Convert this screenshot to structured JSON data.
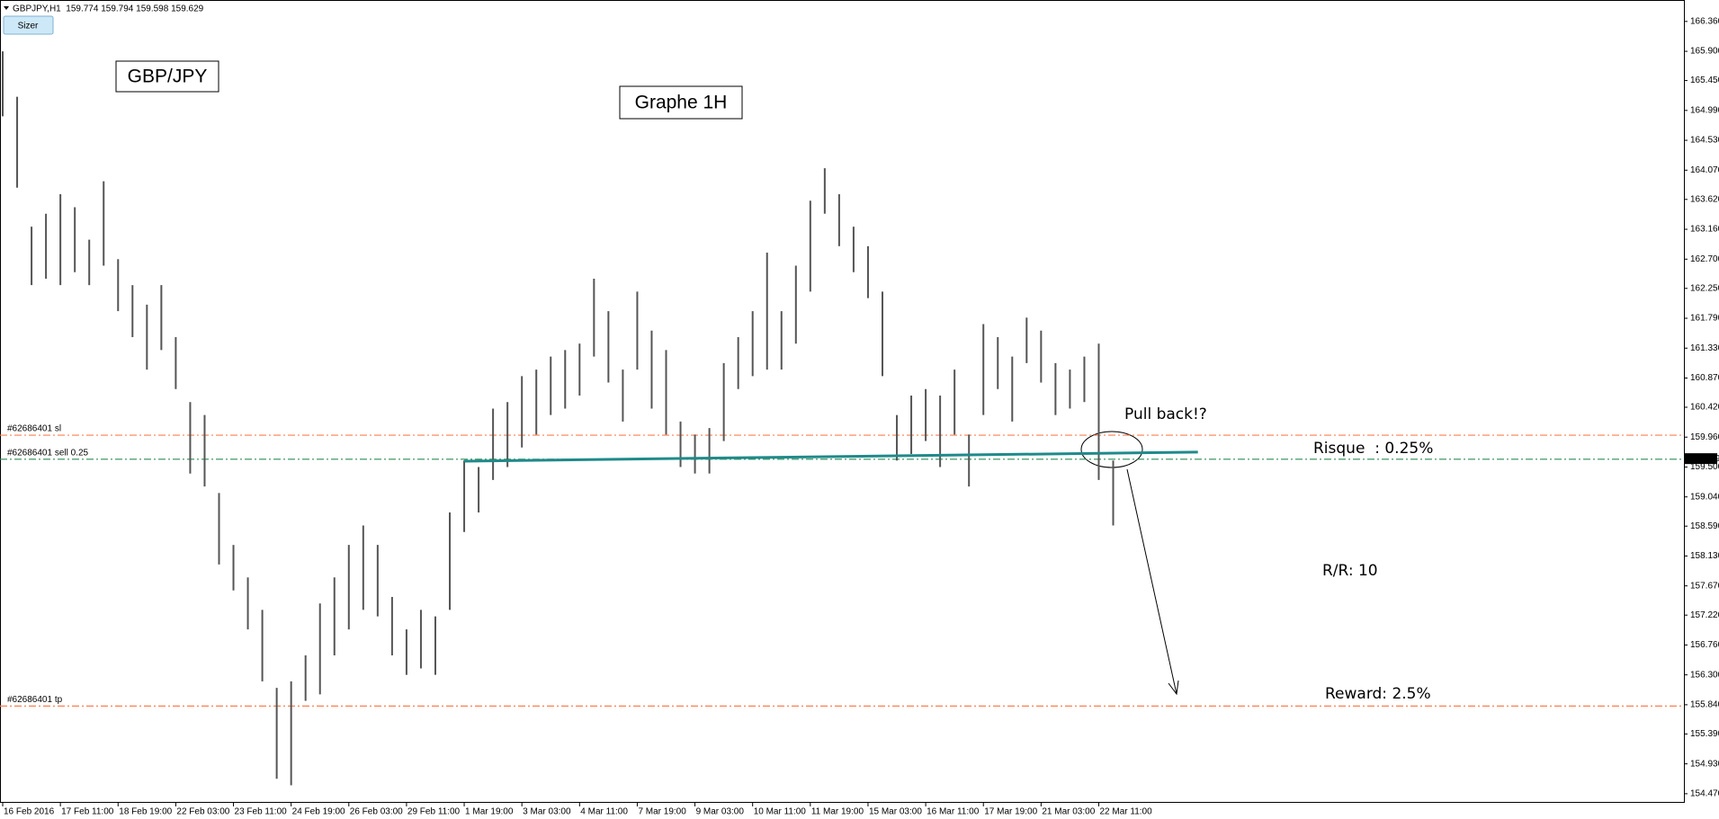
{
  "header": "GBPJPY,H1  159.774 159.794 159.598 159.629",
  "button": "Sizer",
  "chart_data": {
    "type": "ohlc",
    "x": [
      0,
      8,
      16,
      24,
      32,
      40,
      48,
      56,
      64,
      72,
      80,
      88,
      96,
      104,
      112,
      120,
      128,
      136,
      144,
      152,
      160,
      168,
      176,
      184,
      192,
      200,
      208,
      216,
      224,
      232,
      240,
      248,
      256,
      264,
      272,
      280,
      288,
      296,
      304,
      312,
      320,
      328,
      336,
      344,
      352,
      360,
      368,
      376,
      384,
      392,
      400,
      408,
      416,
      424,
      432,
      440,
      448,
      456,
      464,
      472,
      480,
      488,
      496,
      504,
      512,
      520,
      528,
      536,
      544,
      552,
      560,
      568,
      576,
      584,
      592,
      600,
      608,
      616
    ],
    "series": [
      {
        "color": "#555555",
        "high": [
          165.9,
          165.2,
          163.2,
          163.4,
          163.7,
          163.5,
          163.0,
          163.9,
          162.7,
          162.3,
          162.0,
          162.3,
          161.5,
          160.5,
          160.3,
          159.1,
          158.3,
          157.8,
          157.3,
          156.1,
          156.2,
          156.6,
          157.4,
          157.8,
          158.3,
          158.6,
          158.3,
          157.5,
          157.0,
          157.3,
          157.2,
          158.8,
          159.6,
          159.5,
          160.4,
          160.5,
          160.9,
          161.0,
          161.2,
          161.3,
          161.4,
          162.4,
          161.9,
          161.0,
          162.2,
          161.6,
          161.3,
          160.2,
          160.0,
          160.1,
          161.1,
          161.5,
          161.9,
          162.8,
          161.9,
          162.6,
          163.6,
          164.1,
          163.7,
          163.2,
          162.9,
          162.2,
          160.3,
          160.6,
          160.7,
          160.6,
          161.0,
          160.0,
          161.7,
          161.5,
          161.2,
          161.8,
          161.6,
          161.1,
          161.0,
          161.2,
          161.4,
          159.6
        ],
        "low": [
          164.9,
          163.8,
          162.3,
          162.4,
          162.3,
          162.5,
          162.3,
          162.6,
          161.9,
          161.5,
          161.0,
          161.3,
          160.7,
          159.4,
          159.2,
          158.0,
          157.6,
          157.0,
          156.2,
          154.7,
          154.6,
          155.9,
          156.0,
          156.6,
          157.0,
          157.3,
          157.2,
          156.6,
          156.3,
          156.4,
          156.3,
          157.3,
          158.5,
          158.8,
          159.3,
          159.5,
          159.8,
          160.0,
          160.3,
          160.4,
          160.6,
          161.2,
          160.8,
          160.2,
          161.0,
          160.4,
          160.0,
          159.5,
          159.4,
          159.4,
          159.9,
          160.7,
          160.9,
          161.0,
          161.0,
          161.4,
          162.2,
          163.4,
          162.9,
          162.5,
          162.1,
          160.9,
          159.6,
          159.7,
          159.9,
          159.5,
          160.0,
          159.2,
          160.3,
          160.7,
          160.2,
          161.1,
          160.8,
          160.3,
          160.4,
          160.5,
          159.3,
          158.6
        ]
      }
    ],
    "xlim": [
      -1.5,
      932.6
    ],
    "xticks": [
      {
        "value": 0,
        "label": "16 Feb 2016"
      },
      {
        "value": 32,
        "label": "17 Feb 11:00"
      },
      {
        "value": 64,
        "label": "18 Feb 19:00"
      },
      {
        "value": 96,
        "label": "22 Feb 03:00"
      },
      {
        "value": 128,
        "label": "23 Feb 11:00"
      },
      {
        "value": 160,
        "label": "24 Feb 19:00"
      },
      {
        "value": 192,
        "label": "26 Feb 03:00"
      },
      {
        "value": 224,
        "label": "29 Feb 11:00"
      },
      {
        "value": 256,
        "label": "1 Mar 19:00"
      },
      {
        "value": 288,
        "label": "3 Mar 03:00"
      },
      {
        "value": 320,
        "label": "4 Mar 11:00"
      },
      {
        "value": 352,
        "label": "7 Mar 19:00"
      },
      {
        "value": 384,
        "label": "9 Mar 03:00"
      },
      {
        "value": 416,
        "label": "10 Mar 11:00"
      },
      {
        "value": 448,
        "label": "11 Mar 19:00"
      },
      {
        "value": 480,
        "label": "15 Mar 03:00"
      },
      {
        "value": 512,
        "label": "16 Mar 11:00"
      },
      {
        "value": 544,
        "label": "17 Mar 19:00"
      },
      {
        "value": 576,
        "label": "21 Mar 03:00"
      },
      {
        "value": 608,
        "label": "22 Mar 11:00"
      }
    ],
    "ylim": [
      154.33,
      166.69
    ],
    "yticks": [
      {
        "value": 166.36,
        "label": "166.360"
      },
      {
        "value": 165.9,
        "label": "165.900"
      },
      {
        "value": 165.45,
        "label": "165.450"
      },
      {
        "value": 164.99,
        "label": "164.990"
      },
      {
        "value": 164.53,
        "label": "164.530"
      },
      {
        "value": 164.07,
        "label": "164.070"
      },
      {
        "value": 163.62,
        "label": "163.620"
      },
      {
        "value": 163.16,
        "label": "163.160"
      },
      {
        "value": 162.7,
        "label": "162.700"
      },
      {
        "value": 162.25,
        "label": "162.250"
      },
      {
        "value": 161.79,
        "label": "161.790"
      },
      {
        "value": 161.33,
        "label": "161.330"
      },
      {
        "value": 160.87,
        "label": "160.870"
      },
      {
        "value": 160.42,
        "label": "160.420"
      },
      {
        "value": 159.96,
        "label": "159.960"
      },
      {
        "value": 159.5,
        "label": "159.500"
      },
      {
        "value": 159.04,
        "label": "159.040"
      },
      {
        "value": 158.59,
        "label": "158.590"
      },
      {
        "value": 158.13,
        "label": "158.130"
      },
      {
        "value": 157.67,
        "label": "157.670"
      },
      {
        "value": 157.22,
        "label": "157.220"
      },
      {
        "value": 156.76,
        "label": "156.760"
      },
      {
        "value": 156.3,
        "label": "156.300"
      },
      {
        "value": 155.84,
        "label": "155.840"
      },
      {
        "value": 155.39,
        "label": "155.390"
      },
      {
        "value": 154.93,
        "label": "154.930"
      },
      {
        "value": 154.47,
        "label": "154.470"
      }
    ],
    "last_price": 159.629,
    "levels": [
      {
        "label": "#62686401 sl",
        "value": 159.99,
        "color": "#ff7f50"
      },
      {
        "label": "#62686401 sell 0.25",
        "value": 159.62,
        "color": "#2e8b57"
      },
      {
        "label": "#62686401 tp",
        "value": 155.82,
        "color": "#ff7f50"
      }
    ],
    "trendline": {
      "x": [
        256,
        663
      ],
      "y": [
        159.59,
        159.73
      ],
      "color": "#1f8a8a"
    },
    "annotations": [
      "GBP/JPY",
      "Graphe 1H",
      "Pull back!?",
      "Risque  : 0.25%",
      "R/R: 10",
      "Reward: 2.5%"
    ]
  }
}
